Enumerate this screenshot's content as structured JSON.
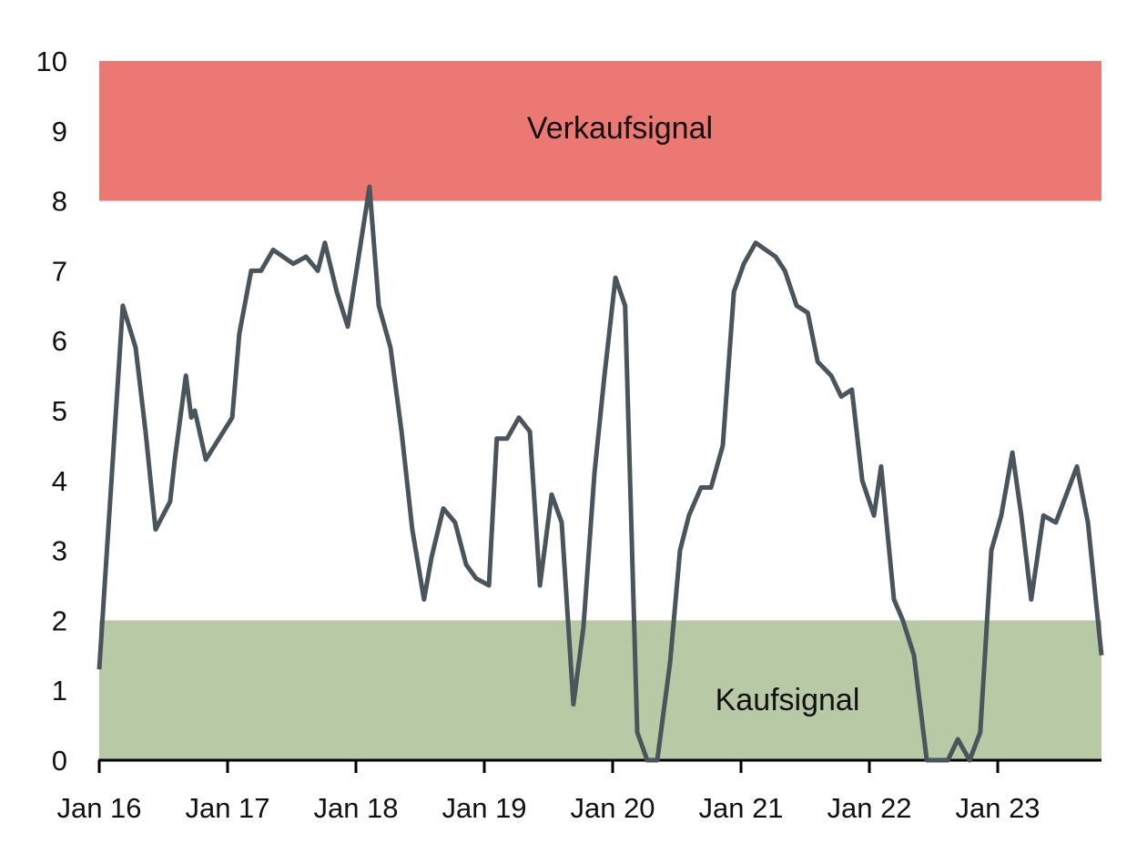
{
  "chart_data": {
    "type": "line",
    "title": "",
    "xlabel": "",
    "ylabel": "",
    "ylim": [
      0,
      10
    ],
    "xlim": [
      "2016-01-01",
      "2023-10-22"
    ],
    "grid": false,
    "yticks": [
      "0",
      "1",
      "2",
      "3",
      "4",
      "5",
      "6",
      "7",
      "8",
      "9",
      "10"
    ],
    "xticks": [
      {
        "date": "2016-01-01",
        "label": "Jan 16"
      },
      {
        "date": "2017-01-01",
        "label": "Jan 17"
      },
      {
        "date": "2018-01-01",
        "label": "Jan 18"
      },
      {
        "date": "2019-01-01",
        "label": "Jan 19"
      },
      {
        "date": "2020-01-01",
        "label": "Jan 20"
      },
      {
        "date": "2021-01-01",
        "label": "Jan 21"
      },
      {
        "date": "2022-01-01",
        "label": "Jan 22"
      },
      {
        "date": "2023-01-01",
        "label": "Jan 23"
      }
    ],
    "bands": [
      {
        "label": "Verkaufsignal",
        "from": 8,
        "to": 10,
        "color": "#ec7873"
      },
      {
        "label": "Kaufsignal",
        "from": 0,
        "to": 2,
        "color": "#b8c9a6"
      }
    ],
    "series": [
      {
        "color": "#4a545b",
        "points": [
          [
            "2016-01-01",
            1.3
          ],
          [
            "2016-03-07",
            6.5
          ],
          [
            "2016-04-13",
            5.9
          ],
          [
            "2016-05-11",
            4.7
          ],
          [
            "2016-06-09",
            3.3
          ],
          [
            "2016-07-20",
            3.7
          ],
          [
            "2016-08-03",
            4.3
          ],
          [
            "2016-09-04",
            5.5
          ],
          [
            "2016-09-19",
            4.9
          ],
          [
            "2016-09-29",
            5.0
          ],
          [
            "2016-10-30",
            4.3
          ],
          [
            "2017-01-14",
            4.9
          ],
          [
            "2017-02-04",
            6.1
          ],
          [
            "2017-03-07",
            7.0
          ],
          [
            "2017-04-05",
            7.0
          ],
          [
            "2017-05-09",
            7.3
          ],
          [
            "2017-07-05",
            7.1
          ],
          [
            "2017-08-11",
            7.2
          ],
          [
            "2017-09-14",
            7.0
          ],
          [
            "2017-10-04",
            7.4
          ],
          [
            "2017-11-07",
            6.7
          ],
          [
            "2017-12-08",
            6.2
          ],
          [
            "2018-02-09",
            8.2
          ],
          [
            "2018-03-05",
            6.5
          ],
          [
            "2018-04-08",
            5.9
          ],
          [
            "2018-05-09",
            4.7
          ],
          [
            "2018-06-09",
            3.3
          ],
          [
            "2018-07-12",
            2.3
          ],
          [
            "2018-08-03",
            2.9
          ],
          [
            "2018-09-06",
            3.6
          ],
          [
            "2018-10-09",
            3.4
          ],
          [
            "2018-11-10",
            2.8
          ],
          [
            "2018-12-08",
            2.6
          ],
          [
            "2019-01-14",
            2.5
          ],
          [
            "2019-02-06",
            4.6
          ],
          [
            "2019-03-05",
            4.6
          ],
          [
            "2019-04-08",
            4.9
          ],
          [
            "2019-05-09",
            4.7
          ],
          [
            "2019-06-07",
            2.5
          ],
          [
            "2019-07-10",
            3.8
          ],
          [
            "2019-08-08",
            3.4
          ],
          [
            "2019-09-11",
            0.8
          ],
          [
            "2019-10-09",
            1.9
          ],
          [
            "2019-11-10",
            4.1
          ],
          [
            "2019-12-08",
            5.5
          ],
          [
            "2020-01-09",
            6.9
          ],
          [
            "2020-02-06",
            6.5
          ],
          [
            "2020-03-10",
            0.4
          ],
          [
            "2020-04-08",
            0.0
          ],
          [
            "2020-05-06",
            0.0
          ],
          [
            "2020-06-12",
            1.4
          ],
          [
            "2020-07-10",
            3.0
          ],
          [
            "2020-08-05",
            3.5
          ],
          [
            "2020-09-09",
            3.9
          ],
          [
            "2020-10-07",
            3.9
          ],
          [
            "2020-11-10",
            4.5
          ],
          [
            "2020-12-11",
            6.7
          ],
          [
            "2021-01-09",
            7.1
          ],
          [
            "2021-02-12",
            7.4
          ],
          [
            "2021-04-08",
            7.2
          ],
          [
            "2021-05-04",
            7.0
          ],
          [
            "2021-06-07",
            6.5
          ],
          [
            "2021-07-08",
            6.4
          ],
          [
            "2021-08-06",
            5.7
          ],
          [
            "2021-09-14",
            5.5
          ],
          [
            "2021-10-12",
            5.2
          ],
          [
            "2021-11-12",
            5.3
          ],
          [
            "2021-12-11",
            4.0
          ],
          [
            "2022-01-14",
            3.5
          ],
          [
            "2022-02-04",
            4.2
          ],
          [
            "2022-03-10",
            2.3
          ],
          [
            "2022-04-05",
            2.0
          ],
          [
            "2022-05-06",
            1.5
          ],
          [
            "2022-06-12",
            0.0
          ],
          [
            "2022-07-10",
            0.0
          ],
          [
            "2022-08-11",
            0.0
          ],
          [
            "2022-09-09",
            0.3
          ],
          [
            "2022-10-12",
            0.0
          ],
          [
            "2022-11-12",
            0.4
          ],
          [
            "2022-12-13",
            3.0
          ],
          [
            "2023-01-11",
            3.5
          ],
          [
            "2023-02-12",
            4.4
          ],
          [
            "2023-03-07",
            3.5
          ],
          [
            "2023-04-05",
            2.3
          ],
          [
            "2023-05-09",
            3.5
          ],
          [
            "2023-06-14",
            3.4
          ],
          [
            "2023-08-13",
            4.2
          ],
          [
            "2023-09-14",
            3.4
          ],
          [
            "2023-10-22",
            1.5
          ]
        ]
      }
    ]
  }
}
